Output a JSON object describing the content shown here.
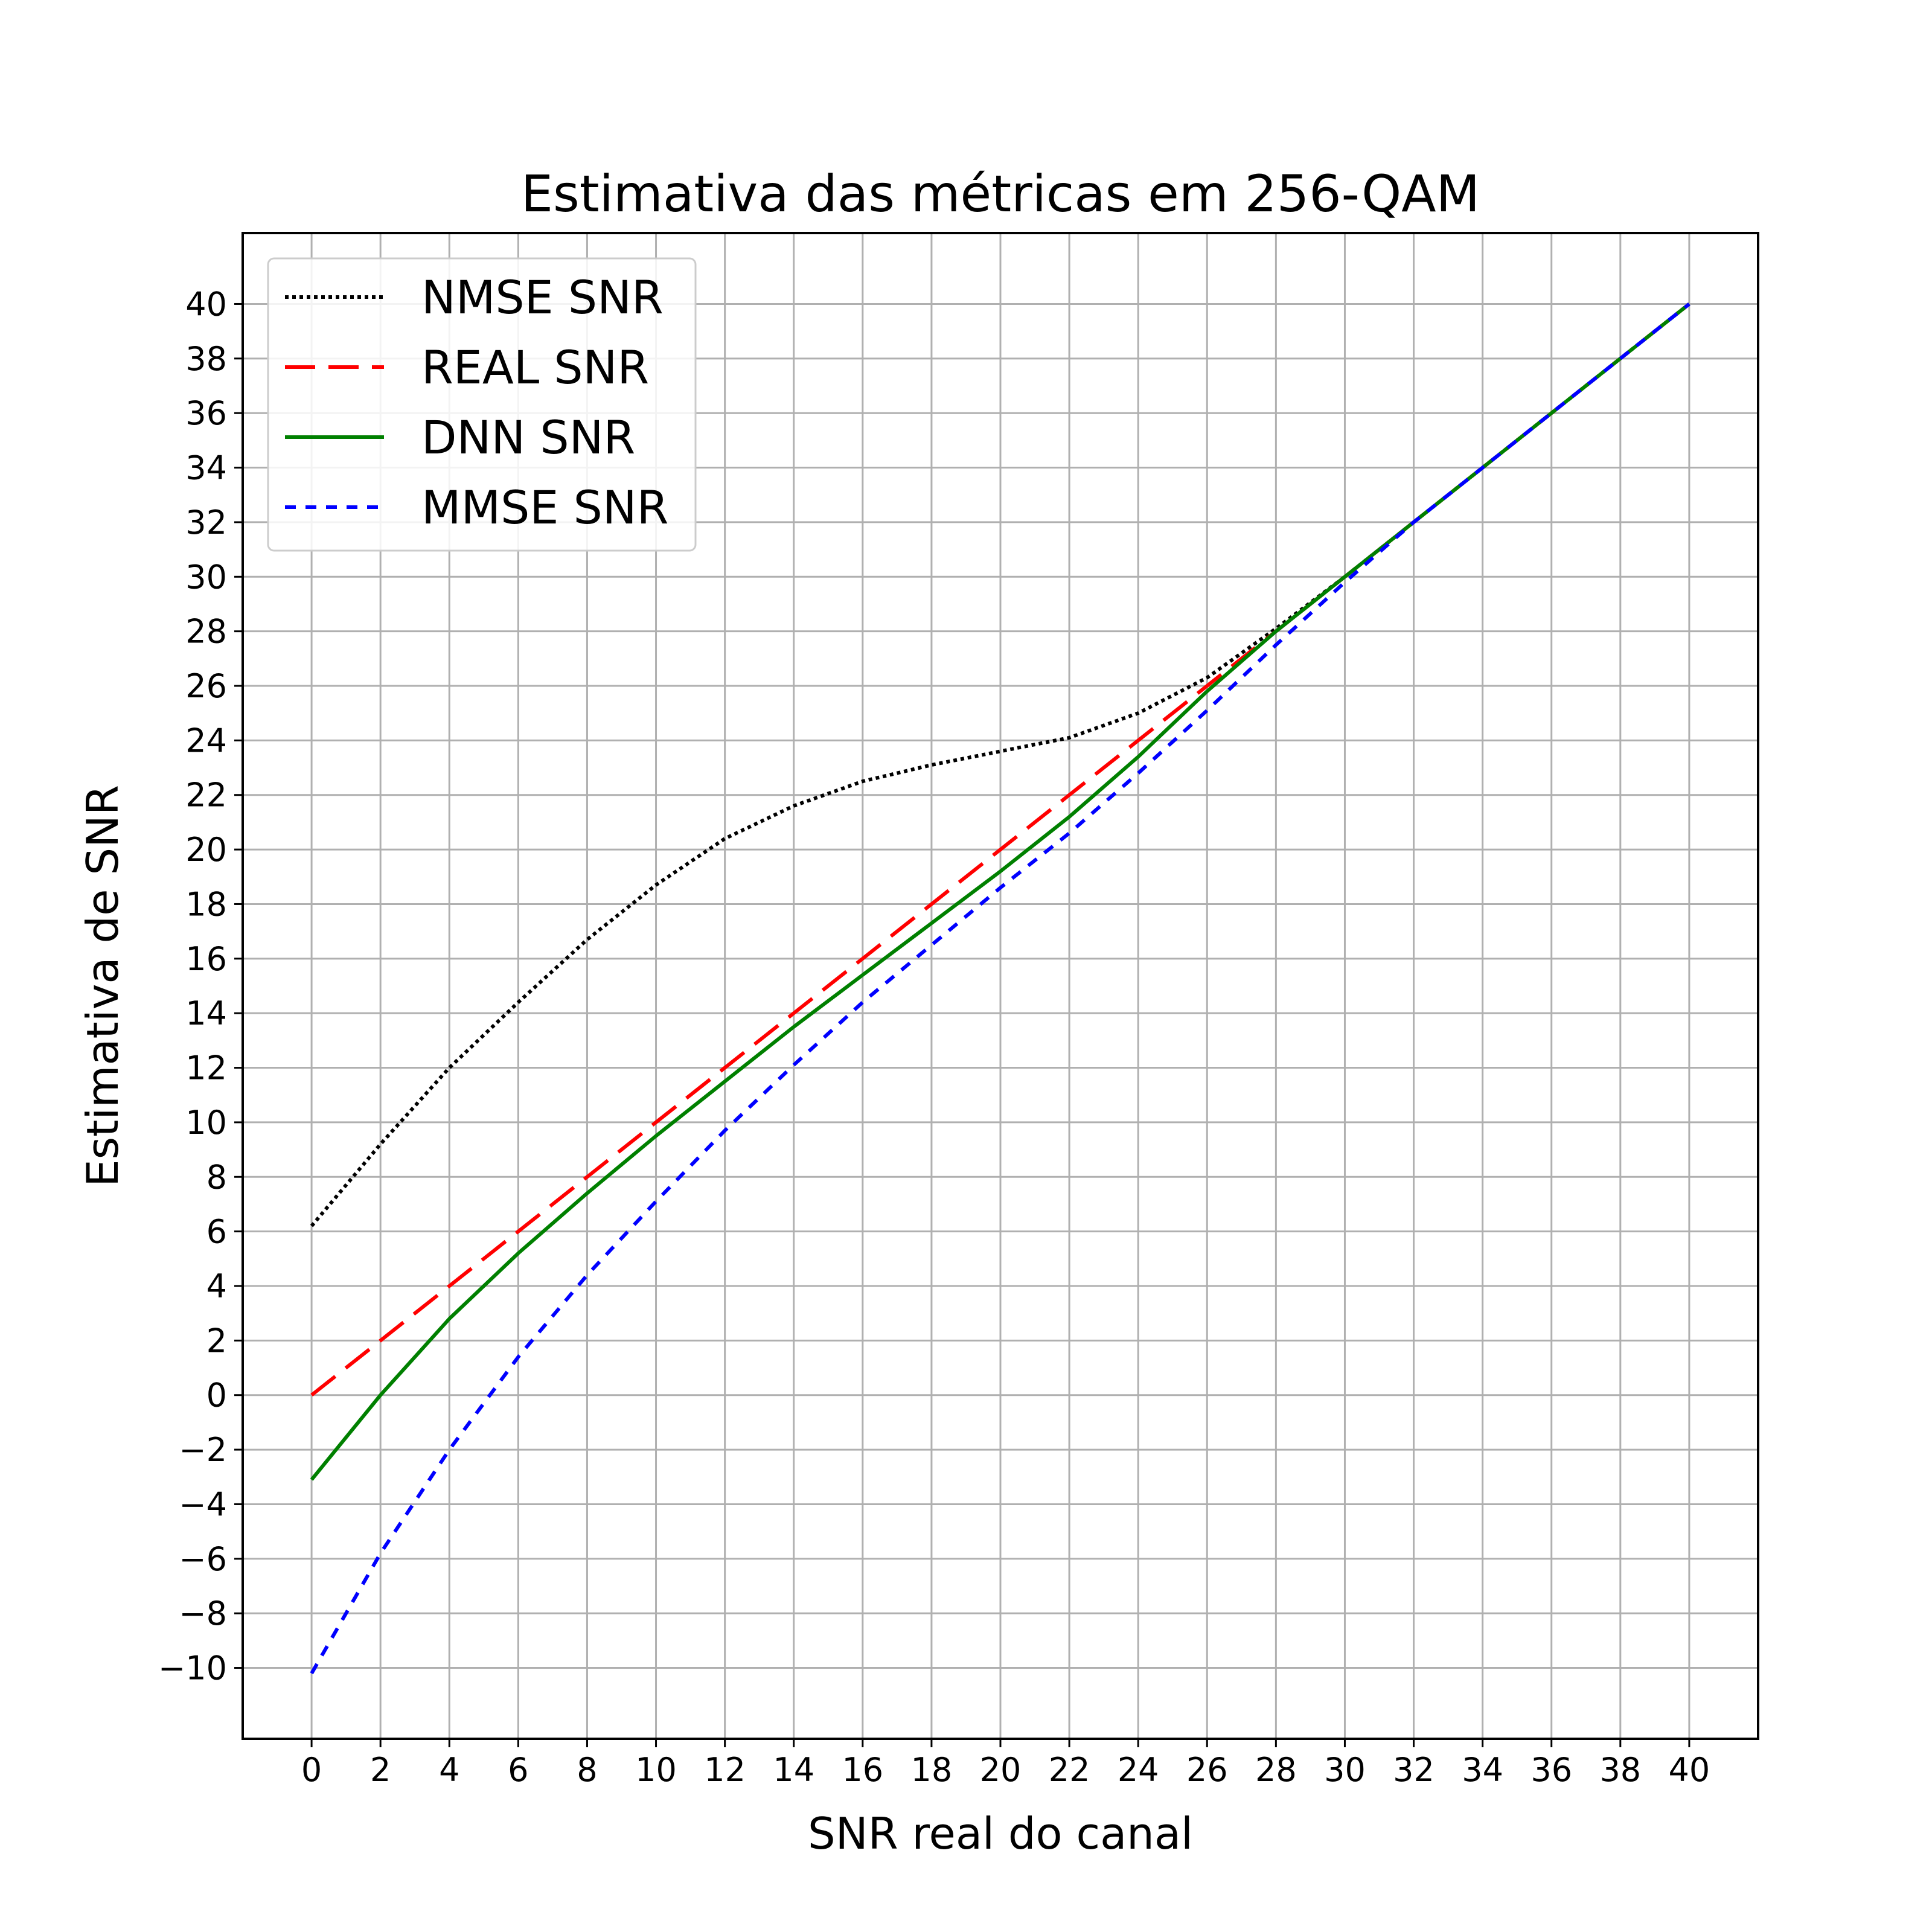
{
  "chart_data": {
    "type": "line",
    "title": "Estimativa das métricas em 256-QAM",
    "xlabel": "SNR real do canal",
    "ylabel": "Estimativa de SNR",
    "xlim": [
      -2,
      42
    ],
    "ylim": [
      -12.6,
      42.6
    ],
    "xticks": [
      0,
      2,
      4,
      6,
      8,
      10,
      12,
      14,
      16,
      18,
      20,
      22,
      24,
      26,
      28,
      30,
      32,
      34,
      36,
      38,
      40
    ],
    "yticks": [
      -10,
      -8,
      -6,
      -4,
      -2,
      0,
      2,
      4,
      6,
      8,
      10,
      12,
      14,
      16,
      18,
      20,
      22,
      24,
      26,
      28,
      30,
      32,
      34,
      36,
      38,
      40
    ],
    "grid": true,
    "legend_position": "top-left",
    "x": [
      0,
      2,
      4,
      6,
      8,
      10,
      12,
      14,
      16,
      18,
      20,
      22,
      24,
      26,
      28,
      30,
      32,
      34,
      36,
      38,
      40
    ],
    "series": [
      {
        "name": "NMSE SNR",
        "color": "#000000",
        "style": "dotted",
        "values": [
          6.2,
          9.2,
          12.0,
          14.4,
          16.7,
          18.7,
          20.4,
          21.6,
          22.5,
          23.1,
          23.6,
          24.1,
          25.0,
          26.3,
          28.1,
          30.0,
          32.0,
          34.0,
          36.0,
          38.0,
          40.0
        ]
      },
      {
        "name": "REAL SNR",
        "color": "#ff0000",
        "style": "dashed",
        "values": [
          0,
          2,
          4,
          6,
          8,
          10,
          12,
          14,
          16,
          18,
          20,
          22,
          24,
          26,
          28,
          30,
          32,
          34,
          36,
          38,
          40
        ]
      },
      {
        "name": "DNN SNR",
        "color": "#008000",
        "style": "solid",
        "values": [
          -3.1,
          0.0,
          2.8,
          5.2,
          7.4,
          9.5,
          11.5,
          13.5,
          15.4,
          17.3,
          19.2,
          21.2,
          23.4,
          25.8,
          28.0,
          30.0,
          32.0,
          34.0,
          36.0,
          38.0,
          40.0
        ]
      },
      {
        "name": "MMSE SNR",
        "color": "#0000ff",
        "style": "shortdash",
        "values": [
          -10.2,
          -5.8,
          -2.0,
          1.4,
          4.4,
          7.1,
          9.7,
          12.1,
          14.4,
          16.5,
          18.6,
          20.6,
          22.8,
          25.1,
          27.5,
          29.8,
          32.0,
          34.0,
          36.0,
          38.0,
          40.0
        ]
      }
    ]
  }
}
